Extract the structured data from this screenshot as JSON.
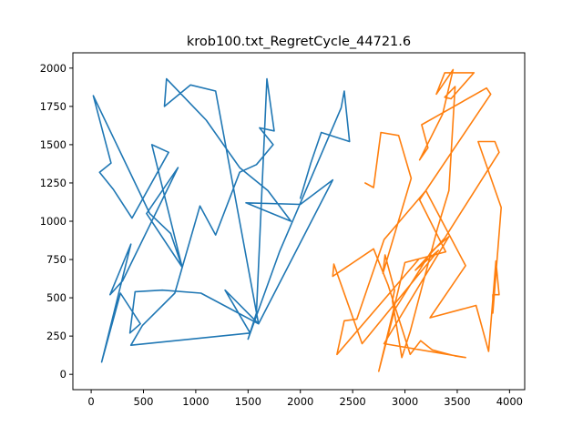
{
  "chart_data": {
    "type": "line",
    "title": "krob100.txt_RegretCycle_44721.6",
    "xlabel": "",
    "ylabel": "",
    "xlim": [
      -175,
      4145
    ],
    "ylim": [
      -100,
      2100
    ],
    "x_ticks": [
      0,
      500,
      1000,
      1500,
      2000,
      2500,
      3000,
      3500,
      4000
    ],
    "y_ticks": [
      0,
      250,
      500,
      750,
      1000,
      1250,
      1500,
      1750,
      2000
    ],
    "grid": false,
    "legend": "none",
    "series": [
      {
        "color": "#1f77b4",
        "points": [
          [
            2000,
            1150
          ],
          [
            2100,
            1380
          ],
          [
            2200,
            1580
          ],
          [
            2470,
            1520
          ],
          [
            2420,
            1850
          ],
          [
            2390,
            1740
          ],
          [
            1800,
            800
          ],
          [
            1500,
            230
          ],
          [
            1580,
            400
          ],
          [
            1680,
            1930
          ],
          [
            1750,
            1590
          ],
          [
            1610,
            1610
          ],
          [
            1740,
            1500
          ],
          [
            1580,
            1370
          ],
          [
            1420,
            1320
          ],
          [
            1190,
            910
          ],
          [
            1040,
            1100
          ],
          [
            800,
            530
          ],
          [
            490,
            320
          ],
          [
            380,
            190
          ],
          [
            1520,
            270
          ],
          [
            1280,
            550
          ],
          [
            1600,
            330
          ],
          [
            1190,
            1850
          ],
          [
            950,
            1890
          ],
          [
            700,
            1750
          ],
          [
            720,
            1930
          ],
          [
            1100,
            1660
          ],
          [
            1420,
            1350
          ],
          [
            1690,
            1200
          ],
          [
            1910,
            1000
          ],
          [
            1480,
            1120
          ],
          [
            2000,
            1110
          ],
          [
            2310,
            1270
          ],
          [
            1600,
            330
          ],
          [
            1050,
            530
          ],
          [
            680,
            550
          ],
          [
            420,
            540
          ],
          [
            370,
            270
          ],
          [
            470,
            330
          ],
          [
            280,
            530
          ],
          [
            100,
            80
          ],
          [
            380,
            850
          ],
          [
            180,
            520
          ],
          [
            300,
            610
          ],
          [
            830,
            1350
          ],
          [
            530,
            1050
          ],
          [
            870,
            700
          ],
          [
            580,
            1500
          ],
          [
            740,
            1450
          ],
          [
            390,
            1020
          ],
          [
            210,
            1210
          ],
          [
            80,
            1320
          ],
          [
            190,
            1380
          ],
          [
            20,
            1820
          ],
          [
            560,
            1050
          ],
          [
            760,
            920
          ],
          [
            870,
            700
          ]
        ]
      },
      {
        "color": "#ff7f0e",
        "points": [
          [
            2620,
            1250
          ],
          [
            2700,
            1220
          ],
          [
            2770,
            1580
          ],
          [
            2940,
            1560
          ],
          [
            3060,
            1280
          ],
          [
            2790,
            660
          ],
          [
            2810,
            780
          ],
          [
            2900,
            550
          ],
          [
            2880,
            480
          ],
          [
            2970,
            110
          ],
          [
            3050,
            280
          ],
          [
            3310,
            950
          ],
          [
            3420,
            1200
          ],
          [
            3480,
            1880
          ],
          [
            3380,
            1810
          ],
          [
            3440,
            1800
          ],
          [
            3660,
            1970
          ],
          [
            3380,
            1970
          ],
          [
            3300,
            1830
          ],
          [
            3460,
            1990
          ],
          [
            3360,
            1700
          ],
          [
            3140,
            1400
          ],
          [
            3220,
            1480
          ],
          [
            3160,
            1630
          ],
          [
            3780,
            1870
          ],
          [
            3820,
            1830
          ],
          [
            3140,
            1140
          ],
          [
            3390,
            800
          ],
          [
            3000,
            730
          ],
          [
            2750,
            20
          ],
          [
            2900,
            420
          ],
          [
            3250,
            800
          ],
          [
            3420,
            900
          ],
          [
            2800,
            200
          ],
          [
            3580,
            110
          ],
          [
            3480,
            120
          ],
          [
            3260,
            160
          ],
          [
            3150,
            220
          ],
          [
            3050,
            130
          ],
          [
            2840,
            580
          ],
          [
            2700,
            820
          ],
          [
            2310,
            640
          ],
          [
            2320,
            720
          ],
          [
            2590,
            200
          ],
          [
            3320,
            810
          ],
          [
            3100,
            680
          ],
          [
            3380,
            890
          ],
          [
            3900,
            1450
          ],
          [
            3860,
            1520
          ],
          [
            3700,
            1520
          ],
          [
            3920,
            1090
          ],
          [
            3840,
            400
          ],
          [
            3840,
            520
          ],
          [
            3900,
            520
          ],
          [
            3870,
            740
          ],
          [
            3800,
            150
          ],
          [
            3680,
            450
          ],
          [
            3240,
            370
          ],
          [
            3580,
            710
          ],
          [
            3200,
            1200
          ],
          [
            2800,
            880
          ],
          [
            2540,
            360
          ],
          [
            2420,
            350
          ],
          [
            2350,
            130
          ],
          [
            3130,
            750
          ]
        ]
      }
    ]
  }
}
